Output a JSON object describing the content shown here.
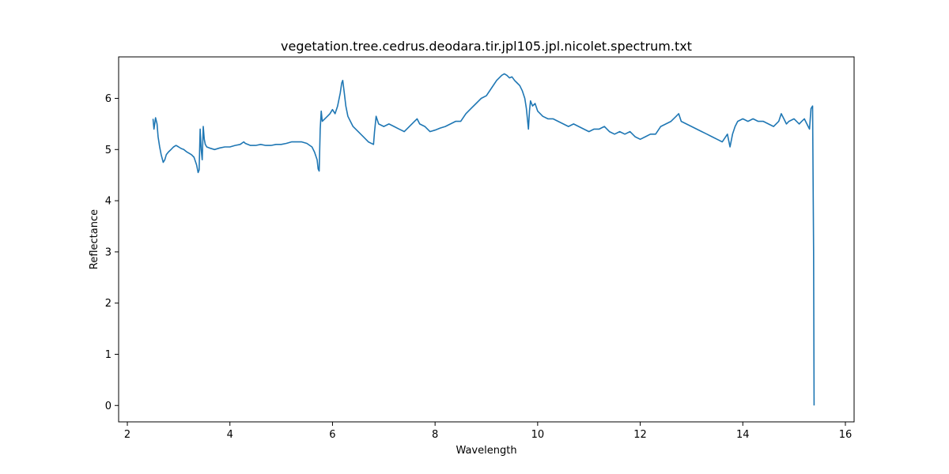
{
  "chart_data": {
    "type": "line",
    "title": "vegetation.tree.cedrus.deodara.tir.jpl105.jpl.nicolet.spectrum.txt",
    "xlabel": "Wavelength",
    "ylabel": "Reflectance",
    "xlim": [
      1.83,
      16.17
    ],
    "ylim": [
      -0.32,
      6.81
    ],
    "xticks": [
      2,
      4,
      6,
      8,
      10,
      12,
      14,
      16
    ],
    "yticks": [
      0,
      1,
      2,
      3,
      4,
      5,
      6
    ],
    "grid": false,
    "legend": "none",
    "line_color": "#1f77b4",
    "series": [
      {
        "x": [
          2.5,
          2.52,
          2.55,
          2.58,
          2.6,
          2.63,
          2.66,
          2.7,
          2.73,
          2.76,
          2.8,
          2.85,
          2.9,
          2.95,
          3.0,
          3.05,
          3.1,
          3.15,
          3.2,
          3.25,
          3.3,
          3.35,
          3.38,
          3.4,
          3.42,
          3.44,
          3.46,
          3.48,
          3.5,
          3.52,
          3.55,
          3.6,
          3.7,
          3.8,
          3.9,
          4.0,
          4.1,
          4.2,
          4.27,
          4.3,
          4.4,
          4.5,
          4.6,
          4.7,
          4.8,
          4.9,
          5.0,
          5.1,
          5.2,
          5.3,
          5.4,
          5.5,
          5.6,
          5.65,
          5.7,
          5.72,
          5.74,
          5.76,
          5.78,
          5.8,
          5.85,
          5.9,
          5.95,
          6.0,
          6.05,
          6.1,
          6.15,
          6.18,
          6.2,
          6.23,
          6.26,
          6.3,
          6.35,
          6.4,
          6.5,
          6.6,
          6.7,
          6.8,
          6.82,
          6.85,
          6.9,
          7.0,
          7.1,
          7.2,
          7.3,
          7.4,
          7.5,
          7.6,
          7.65,
          7.7,
          7.8,
          7.9,
          8.0,
          8.1,
          8.2,
          8.3,
          8.4,
          8.5,
          8.6,
          8.7,
          8.8,
          8.9,
          9.0,
          9.1,
          9.2,
          9.3,
          9.35,
          9.4,
          9.45,
          9.5,
          9.55,
          9.6,
          9.65,
          9.7,
          9.75,
          9.78,
          9.8,
          9.82,
          9.84,
          9.86,
          9.9,
          9.95,
          10.0,
          10.1,
          10.2,
          10.3,
          10.4,
          10.5,
          10.6,
          10.7,
          10.8,
          10.9,
          11.0,
          11.1,
          11.2,
          11.3,
          11.4,
          11.5,
          11.6,
          11.7,
          11.8,
          11.9,
          12.0,
          12.1,
          12.2,
          12.3,
          12.4,
          12.5,
          12.6,
          12.7,
          12.75,
          12.8,
          12.9,
          13.0,
          13.1,
          13.2,
          13.3,
          13.4,
          13.5,
          13.6,
          13.7,
          13.72,
          13.75,
          13.8,
          13.85,
          13.9,
          14.0,
          14.1,
          14.2,
          14.3,
          14.4,
          14.5,
          14.6,
          14.7,
          14.75,
          14.8,
          14.85,
          14.9,
          15.0,
          15.1,
          15.15,
          15.2,
          15.25,
          15.3,
          15.33,
          15.36,
          15.38,
          15.39
        ],
        "y": [
          5.6,
          5.4,
          5.62,
          5.5,
          5.25,
          5.05,
          4.9,
          4.75,
          4.8,
          4.9,
          4.95,
          5.0,
          5.05,
          5.08,
          5.05,
          5.02,
          5.0,
          4.96,
          4.93,
          4.9,
          4.85,
          4.7,
          4.55,
          4.6,
          5.4,
          5.0,
          4.8,
          5.45,
          5.2,
          5.1,
          5.05,
          5.03,
          5.0,
          5.03,
          5.05,
          5.05,
          5.08,
          5.1,
          5.15,
          5.12,
          5.08,
          5.08,
          5.1,
          5.08,
          5.08,
          5.1,
          5.1,
          5.12,
          5.15,
          5.15,
          5.15,
          5.12,
          5.05,
          4.95,
          4.8,
          4.62,
          4.58,
          5.4,
          5.75,
          5.55,
          5.6,
          5.65,
          5.7,
          5.78,
          5.7,
          5.85,
          6.1,
          6.3,
          6.35,
          6.1,
          5.85,
          5.65,
          5.55,
          5.45,
          5.35,
          5.25,
          5.15,
          5.1,
          5.35,
          5.65,
          5.5,
          5.45,
          5.5,
          5.45,
          5.4,
          5.35,
          5.45,
          5.55,
          5.6,
          5.5,
          5.45,
          5.35,
          5.38,
          5.42,
          5.45,
          5.5,
          5.55,
          5.55,
          5.7,
          5.8,
          5.9,
          6.0,
          6.05,
          6.2,
          6.35,
          6.45,
          6.48,
          6.45,
          6.4,
          6.42,
          6.35,
          6.3,
          6.25,
          6.15,
          6.0,
          5.8,
          5.6,
          5.4,
          5.75,
          5.95,
          5.85,
          5.9,
          5.75,
          5.65,
          5.6,
          5.6,
          5.55,
          5.5,
          5.45,
          5.5,
          5.45,
          5.4,
          5.35,
          5.4,
          5.4,
          5.45,
          5.35,
          5.3,
          5.35,
          5.3,
          5.35,
          5.25,
          5.2,
          5.25,
          5.3,
          5.3,
          5.45,
          5.5,
          5.55,
          5.65,
          5.7,
          5.55,
          5.5,
          5.45,
          5.4,
          5.35,
          5.3,
          5.25,
          5.2,
          5.15,
          5.3,
          5.2,
          5.05,
          5.3,
          5.45,
          5.55,
          5.6,
          5.55,
          5.6,
          5.55,
          5.55,
          5.5,
          5.45,
          5.55,
          5.7,
          5.6,
          5.5,
          5.55,
          5.6,
          5.5,
          5.55,
          5.6,
          5.5,
          5.4,
          5.8,
          5.85,
          3.0,
          0.0
        ]
      }
    ]
  }
}
